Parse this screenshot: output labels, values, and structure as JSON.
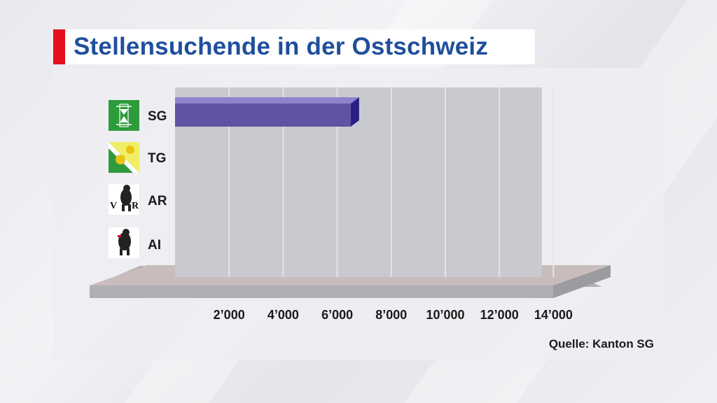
{
  "page": {
    "title": "Stellensuchende in der Ostschweiz",
    "source": "Quelle: Kanton SG"
  },
  "colors": {
    "accent": "#e3101c",
    "title": "#1f4f9d",
    "bar": "#5f53a3",
    "bar_top": "#8e84cc",
    "bar_side": "#2a1f86",
    "plot_back": "#c9c9d0",
    "base": "#c8bcbc"
  },
  "chart_data": {
    "type": "bar",
    "orientation": "horizontal",
    "title": "Stellensuchende in der Ostschweiz",
    "categories": [
      "SG",
      "TG",
      "AR",
      "AI"
    ],
    "category_icons": [
      "coat-of-arms-sg-icon",
      "coat-of-arms-tg-icon",
      "coat-of-arms-ar-icon",
      "coat-of-arms-ai-icon"
    ],
    "values": [
      6500,
      null,
      null,
      null
    ],
    "xlim": [
      0,
      14000
    ],
    "ticks": [
      2000,
      4000,
      6000,
      8000,
      10000,
      12000,
      14000
    ],
    "tick_labels": [
      "2’000",
      "4’000",
      "6’000",
      "8’000",
      "10’000",
      "12’000",
      "14’000"
    ],
    "grid": true,
    "style": "3d"
  }
}
